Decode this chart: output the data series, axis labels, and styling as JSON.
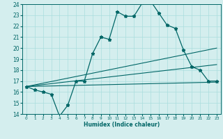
{
  "xlabel": "Humidex (Indice chaleur)",
  "bg_color": "#d4eeee",
  "grid_color": "#aadddd",
  "line_color": "#006666",
  "xlim": [
    -0.5,
    23.5
  ],
  "ylim": [
    14,
    24
  ],
  "x_ticks": [
    0,
    1,
    2,
    3,
    4,
    5,
    6,
    7,
    8,
    9,
    10,
    11,
    12,
    13,
    14,
    15,
    16,
    17,
    18,
    19,
    20,
    21,
    22,
    23
  ],
  "y_ticks": [
    14,
    15,
    16,
    17,
    18,
    19,
    20,
    21,
    22,
    23,
    24
  ],
  "main_x": [
    0,
    1,
    2,
    3,
    4,
    5,
    6,
    7,
    8,
    9,
    10,
    11,
    12,
    13,
    14,
    15,
    16,
    17,
    18,
    19,
    20,
    21,
    22,
    23
  ],
  "main_y": [
    16.5,
    16.2,
    16.0,
    15.8,
    13.8,
    14.8,
    17.0,
    17.0,
    19.5,
    21.0,
    20.8,
    23.3,
    22.9,
    22.9,
    24.1,
    24.3,
    23.2,
    22.1,
    21.8,
    19.8,
    18.3,
    18.0,
    17.0,
    17.0
  ],
  "line1_x": [
    0,
    23
  ],
  "line1_y": [
    16.5,
    16.9
  ],
  "line2_x": [
    0,
    23
  ],
  "line2_y": [
    16.5,
    18.5
  ],
  "line3_x": [
    0,
    23
  ],
  "line3_y": [
    16.5,
    20.0
  ]
}
